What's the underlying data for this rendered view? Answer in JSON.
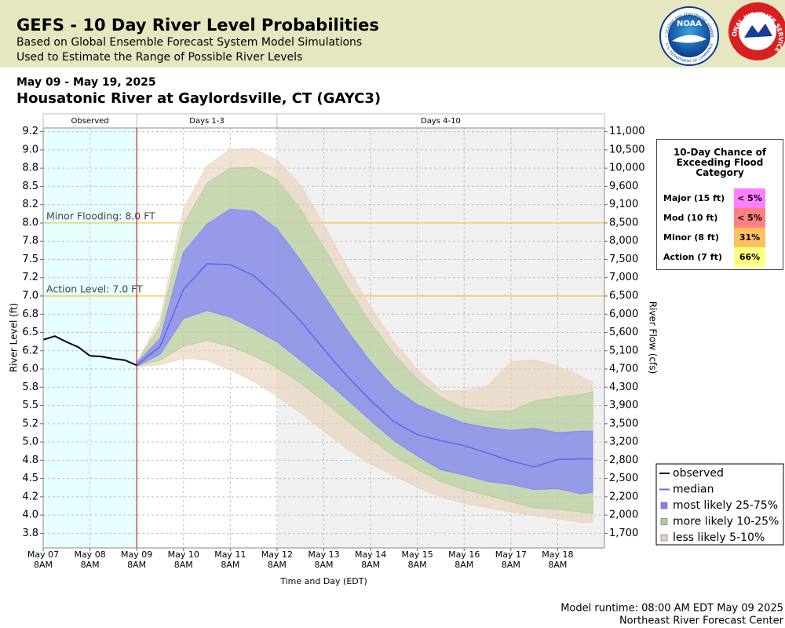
{
  "header": {
    "title": "GEFS - 10 Day River Level Probabilities",
    "subtitle_1": "Based on Global Ensemble Forecast System Model Simulations",
    "subtitle_2": "Used to Estimate the Range of Possible River Levels",
    "noaa_logo": {
      "name": "NOAA",
      "ring_top": "NATIONAL OCEANIC AND ATMOSPHERIC ADMINISTRATION",
      "ring_bottom": "U.S. DEPARTMENT OF COMMERCE"
    },
    "nws_logo": {
      "ring": "NATIONAL WEATHER SERVICE"
    }
  },
  "date_range": "May 09 - May 19, 2025",
  "location": "Housatonic River at Gaylordsville, CT (GAYC3)",
  "footer": {
    "runtime": "Model runtime: 08:00 AM EDT May 09 2025",
    "center": "Northeast River Forecast Center"
  },
  "flood_table": {
    "title": "10-Day Chance of Exceeding Flood Category",
    "rows": [
      {
        "label": "Major (15 ft)",
        "chance": "< 5%",
        "color": "#ff80ff"
      },
      {
        "label": "Mod (10 ft)",
        "chance": "< 5%",
        "color": "#ff8080"
      },
      {
        "label": "Minor (8 ft)",
        "chance": "31%",
        "color": "#ffc060"
      },
      {
        "label": "Action (7 ft)",
        "chance": "66%",
        "color": "#ffff80"
      }
    ]
  },
  "chart_data": {
    "type": "line",
    "x_label": "Time and Day (EDT)",
    "y_label": "River Level (ft)",
    "y2_label": "River Flow (cfs)",
    "xlim": [
      0,
      12
    ],
    "xticks": [
      {
        "value": 0,
        "label": "May 07\n8AM"
      },
      {
        "value": 1,
        "label": "May 08\n8AM"
      },
      {
        "value": 2,
        "label": "May 09\n8AM"
      },
      {
        "value": 3,
        "label": "May 10\n8AM"
      },
      {
        "value": 4,
        "label": "May 11\n8AM"
      },
      {
        "value": 5,
        "label": "May 12\n8AM"
      },
      {
        "value": 6,
        "label": "May 13\n8AM"
      },
      {
        "value": 7,
        "label": "May 14\n8AM"
      },
      {
        "value": 8,
        "label": "May 15\n8AM"
      },
      {
        "value": 9,
        "label": "May 16\n8AM"
      },
      {
        "value": 10,
        "label": "May 17\n8AM"
      },
      {
        "value": 11,
        "label": "May 18\n8AM"
      }
    ],
    "ylim": [
      3.55,
      9.3
    ],
    "yticks": [
      {
        "value": 9.25,
        "label": "9.2"
      },
      {
        "value": 9.0,
        "label": "9.0"
      },
      {
        "value": 8.75,
        "label": "8.8"
      },
      {
        "value": 8.5,
        "label": "8.5"
      },
      {
        "value": 8.25,
        "label": "8.2"
      },
      {
        "value": 8.0,
        "label": "8.0"
      },
      {
        "value": 7.75,
        "label": "7.8"
      },
      {
        "value": 7.5,
        "label": "7.5"
      },
      {
        "value": 7.25,
        "label": "7.2"
      },
      {
        "value": 7.0,
        "label": "7.0"
      },
      {
        "value": 6.75,
        "label": "6.8"
      },
      {
        "value": 6.5,
        "label": "6.5"
      },
      {
        "value": 6.25,
        "label": "6.2"
      },
      {
        "value": 6.0,
        "label": "6.0"
      },
      {
        "value": 5.75,
        "label": "5.8"
      },
      {
        "value": 5.5,
        "label": "5.5"
      },
      {
        "value": 5.25,
        "label": "5.2"
      },
      {
        "value": 5.0,
        "label": "5.0"
      },
      {
        "value": 4.75,
        "label": "4.8"
      },
      {
        "value": 4.5,
        "label": "4.5"
      },
      {
        "value": 4.25,
        "label": "4.2"
      },
      {
        "value": 4.0,
        "label": "4.0"
      },
      {
        "value": 3.75,
        "label": "3.8"
      }
    ],
    "y2ticks": [
      {
        "value": 11000,
        "label": "11,000"
      },
      {
        "value": 10500,
        "label": "10,500"
      },
      {
        "value": 10000,
        "label": "10,000"
      },
      {
        "value": 9600,
        "label": "9,600"
      },
      {
        "value": 9100,
        "label": "9,100"
      },
      {
        "value": 8500,
        "label": "8,500"
      },
      {
        "value": 8000,
        "label": "8,000"
      },
      {
        "value": 7500,
        "label": "7,500"
      },
      {
        "value": 7000,
        "label": "7,000"
      },
      {
        "value": 6500,
        "label": "6,500"
      },
      {
        "value": 6000,
        "label": "6,000"
      },
      {
        "value": 5600,
        "label": "5,600"
      },
      {
        "value": 5100,
        "label": "5,100"
      },
      {
        "value": 4700,
        "label": "4,700"
      },
      {
        "value": 4300,
        "label": "4,300"
      },
      {
        "value": 3900,
        "label": "3,900"
      },
      {
        "value": 3500,
        "label": "3,500"
      },
      {
        "value": 3200,
        "label": "3,200"
      },
      {
        "value": 2800,
        "label": "2,800"
      },
      {
        "value": 2500,
        "label": "2,500"
      },
      {
        "value": 2200,
        "label": "2,200"
      },
      {
        "value": 2000,
        "label": "2,000"
      },
      {
        "value": 1700,
        "label": "1,700"
      }
    ],
    "grid": true,
    "periods": [
      {
        "label": "Observed",
        "start": 0,
        "end": 2,
        "color": "#e8ffff"
      },
      {
        "label": "Days 1-3",
        "start": 2,
        "end": 5,
        "color": "#ffffff"
      },
      {
        "label": "Days 4-10",
        "start": 5,
        "end": 12,
        "color": "#f0f0f0"
      }
    ],
    "forecast_divider_color": "#c00000",
    "thresholds": [
      {
        "label": "Minor Flooding: 8.0 FT",
        "value": 8.0,
        "color": "#f0c040"
      },
      {
        "label": "Action Level: 7.0 FT",
        "value": 7.0,
        "color": "#f0c040"
      }
    ],
    "x": [
      2.0,
      2.5,
      3.0,
      3.5,
      4.0,
      4.5,
      5.0,
      5.5,
      6.0,
      6.5,
      7.0,
      7.5,
      8.0,
      8.5,
      9.0,
      9.5,
      10.0,
      10.5,
      11.0,
      11.5,
      11.75
    ],
    "series": [
      {
        "name": "observed",
        "color": "#000000",
        "x": [
          0,
          0.25,
          0.5,
          0.75,
          1.0,
          1.25,
          1.5,
          1.75,
          2.0
        ],
        "values": [
          6.4,
          6.45,
          6.37,
          6.3,
          6.18,
          6.17,
          6.14,
          6.12,
          6.05
        ]
      },
      {
        "name": "median",
        "color": "#6464f0",
        "values": [
          6.05,
          6.31,
          7.09,
          7.44,
          7.43,
          7.28,
          6.99,
          6.66,
          6.27,
          5.9,
          5.57,
          5.28,
          5.1,
          5.02,
          4.95,
          4.85,
          4.74,
          4.66,
          4.76,
          4.77,
          4.77
        ]
      },
      {
        "name": "most likely 25-75%",
        "color": "#8080ff",
        "upper": [
          6.08,
          6.42,
          7.6,
          7.98,
          8.19,
          8.16,
          7.92,
          7.49,
          7.01,
          6.53,
          6.1,
          5.74,
          5.51,
          5.38,
          5.26,
          5.2,
          5.16,
          5.19,
          5.13,
          5.15,
          5.15
        ],
        "lower": [
          6.04,
          6.2,
          6.69,
          6.8,
          6.71,
          6.55,
          6.37,
          6.12,
          5.86,
          5.58,
          5.29,
          5.02,
          4.81,
          4.62,
          4.55,
          4.46,
          4.42,
          4.35,
          4.36,
          4.29,
          4.31
        ]
      },
      {
        "name": "more likely 10-25%",
        "color": "#a8d098",
        "upper": [
          6.09,
          6.58,
          7.98,
          8.54,
          8.75,
          8.76,
          8.59,
          8.19,
          7.66,
          7.12,
          6.63,
          6.2,
          5.86,
          5.61,
          5.46,
          5.42,
          5.43,
          5.56,
          5.61,
          5.65,
          5.69
        ],
        "lower": [
          6.04,
          6.12,
          6.31,
          6.39,
          6.31,
          6.18,
          6.02,
          5.81,
          5.56,
          5.29,
          5.04,
          4.81,
          4.62,
          4.46,
          4.35,
          4.27,
          4.18,
          4.1,
          4.08,
          4.04,
          4.02
        ]
      },
      {
        "name": "less likely 5-10%",
        "color": "#e8d0b8",
        "upper": [
          6.09,
          6.69,
          8.19,
          8.78,
          9.0,
          9.02,
          8.86,
          8.52,
          7.98,
          7.39,
          6.85,
          6.37,
          5.99,
          5.7,
          5.7,
          5.77,
          6.1,
          6.12,
          6.04,
          5.9,
          5.81
        ],
        "lower": [
          6.03,
          6.06,
          6.15,
          6.12,
          5.99,
          5.83,
          5.63,
          5.4,
          5.15,
          4.91,
          4.7,
          4.54,
          4.38,
          4.25,
          4.16,
          4.1,
          4.04,
          3.99,
          3.95,
          3.9,
          3.9
        ]
      }
    ]
  }
}
